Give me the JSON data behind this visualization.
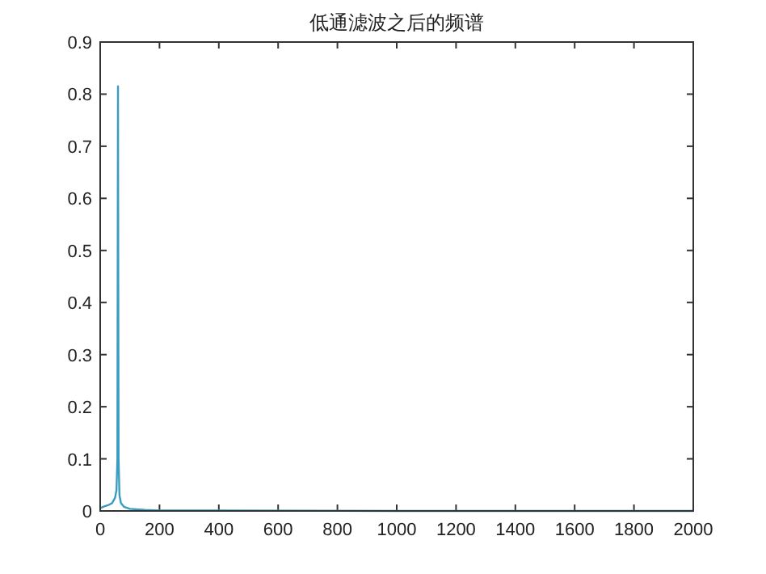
{
  "chart_data": {
    "type": "line",
    "title": "低通滤波之后的频谱",
    "series": [
      {
        "color": "#3a9cc0",
        "x": [
          0,
          10,
          20,
          30,
          40,
          50,
          55,
          58,
          60,
          62,
          65,
          70,
          80,
          100,
          150,
          200,
          400,
          1000,
          2000
        ],
        "values": [
          0.005,
          0.008,
          0.01,
          0.012,
          0.015,
          0.025,
          0.04,
          0.1,
          0.815,
          0.1,
          0.03,
          0.015,
          0.008,
          0.004,
          0.002,
          0.001,
          0.001,
          0,
          0
        ]
      }
    ],
    "xlim": [
      0,
      2000
    ],
    "xticks": [
      0,
      200,
      400,
      600,
      800,
      1000,
      1200,
      1400,
      1600,
      1800,
      2000
    ],
    "ylim": [
      0,
      0.9
    ],
    "yticks": [
      0,
      0.1,
      0.2,
      0.3,
      0.4,
      0.5,
      0.6,
      0.7,
      0.8,
      0.9
    ],
    "grid": false
  }
}
